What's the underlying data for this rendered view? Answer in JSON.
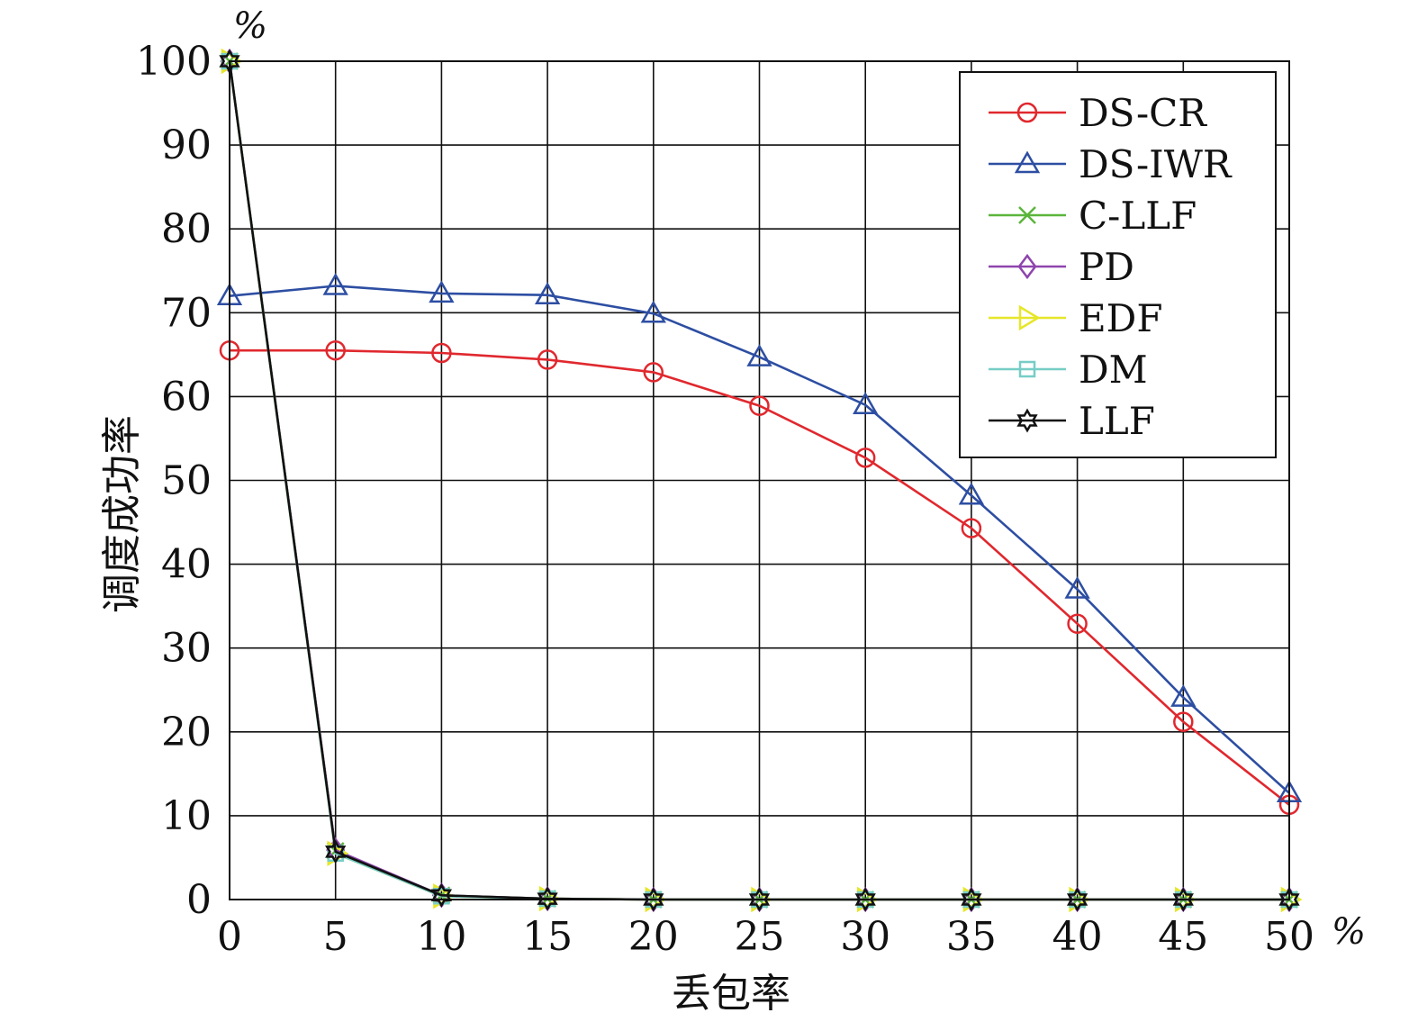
{
  "chart_data": {
    "type": "line",
    "title": "",
    "xlabel": "丢包率",
    "ylabel": "调度成功率",
    "x_unit": "%",
    "y_unit": "%",
    "x": [
      0,
      5,
      10,
      15,
      20,
      25,
      30,
      35,
      40,
      45,
      50
    ],
    "xlim": [
      0,
      50
    ],
    "ylim": [
      0,
      100
    ],
    "xticks": [
      0,
      5,
      10,
      15,
      20,
      25,
      30,
      35,
      40,
      45,
      50
    ],
    "yticks": [
      0,
      10,
      20,
      30,
      40,
      50,
      60,
      70,
      80,
      90,
      100
    ],
    "grid": true,
    "legend_position": "top-right",
    "series": [
      {
        "name": "DS-CR",
        "color": "#e0282e",
        "marker": "circle",
        "values": [
          65.5,
          65.5,
          65.2,
          64.4,
          62.9,
          58.9,
          52.7,
          44.3,
          32.9,
          21.2,
          11.3
        ]
      },
      {
        "name": "DS-IWR",
        "color": "#2d4ea2",
        "marker": "triangle",
        "values": [
          72.0,
          73.2,
          72.3,
          72.1,
          69.9,
          64.7,
          59.0,
          48.2,
          37.0,
          24.1,
          12.7
        ]
      },
      {
        "name": "C-LLF",
        "color": "#5bb53c",
        "marker": "x",
        "values": [
          100,
          5.8,
          0.5,
          0.1,
          0,
          0,
          0,
          0,
          0,
          0,
          0
        ]
      },
      {
        "name": "PD",
        "color": "#8e44ad",
        "marker": "diamond",
        "values": [
          100,
          5.9,
          0.5,
          0.1,
          0,
          0,
          0,
          0,
          0,
          0,
          0
        ]
      },
      {
        "name": "EDF",
        "color": "#e6e62a",
        "marker": "triangle-right",
        "values": [
          100,
          5.5,
          0.4,
          0.1,
          0,
          0,
          0,
          0,
          0,
          0,
          0
        ]
      },
      {
        "name": "DM",
        "color": "#76cdc6",
        "marker": "square",
        "values": [
          100,
          5.5,
          0.4,
          0.1,
          0,
          0,
          0,
          0,
          0,
          0,
          0
        ]
      },
      {
        "name": "LLF",
        "color": "#111111",
        "marker": "hexagram",
        "values": [
          100,
          5.7,
          0.5,
          0.1,
          0,
          0,
          0,
          0,
          0,
          0,
          0
        ]
      }
    ]
  }
}
